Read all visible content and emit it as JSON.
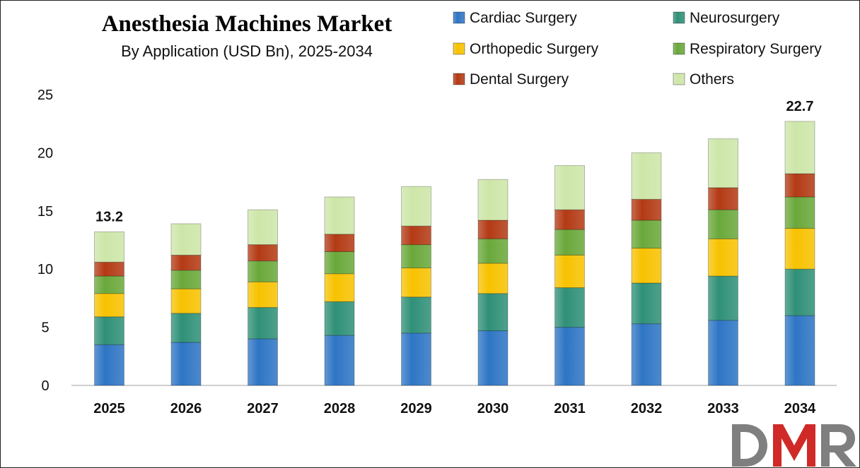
{
  "chart_data": {
    "type": "bar",
    "stacked": true,
    "title": "Anesthesia Machines Market",
    "subtitle": "By Application (USD Bn), 2025-2034",
    "categories": [
      "2025",
      "2026",
      "2027",
      "2028",
      "2029",
      "2030",
      "2031",
      "2032",
      "2033",
      "2034"
    ],
    "series": [
      {
        "name": "Cardiac Surgery",
        "color": "#2e75c4",
        "values": [
          3.5,
          3.7,
          4.0,
          4.3,
          4.5,
          4.7,
          5.0,
          5.3,
          5.6,
          6.0
        ]
      },
      {
        "name": "Neurosurgery",
        "color": "#2f9077",
        "values": [
          2.4,
          2.5,
          2.7,
          2.9,
          3.1,
          3.2,
          3.4,
          3.5,
          3.8,
          4.0
        ]
      },
      {
        "name": "Orthopedic Surgery",
        "color": "#f7c200",
        "values": [
          2.0,
          2.1,
          2.2,
          2.4,
          2.5,
          2.6,
          2.8,
          3.0,
          3.2,
          3.5
        ]
      },
      {
        "name": "Respiratory Surgery",
        "color": "#6aa83a",
        "values": [
          1.5,
          1.6,
          1.8,
          1.9,
          2.0,
          2.1,
          2.2,
          2.4,
          2.5,
          2.7
        ]
      },
      {
        "name": "Dental Surgery",
        "color": "#b33a14",
        "values": [
          1.2,
          1.3,
          1.4,
          1.5,
          1.6,
          1.6,
          1.7,
          1.8,
          1.9,
          2.0
        ]
      },
      {
        "name": "Others",
        "color": "#cde6a8",
        "values": [
          2.6,
          2.7,
          3.0,
          3.2,
          3.4,
          3.5,
          3.8,
          4.0,
          4.2,
          4.5
        ]
      }
    ],
    "totals_labels": [
      {
        "category": "2025",
        "text": "13.2"
      },
      {
        "category": "2034",
        "text": "22.7"
      }
    ],
    "yticks": [
      "0",
      "5",
      "10",
      "15",
      "20",
      "25"
    ],
    "ylim": [
      0,
      25
    ],
    "xlabel": "",
    "ylabel": "",
    "legend": "top-right"
  },
  "watermark": {
    "text": "DMR",
    "colors": [
      "#7f7f7f",
      "#cf2a27"
    ]
  }
}
